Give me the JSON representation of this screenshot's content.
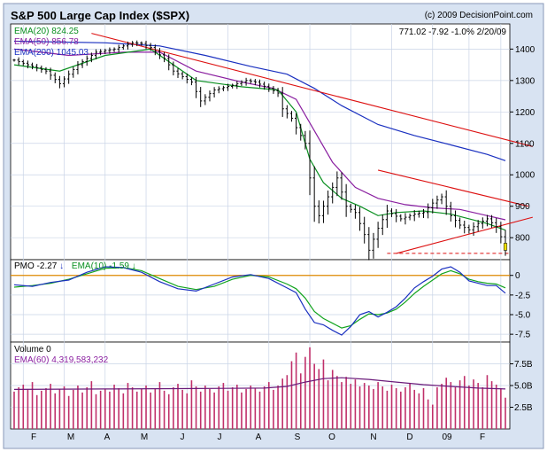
{
  "header": {
    "title": "S&P 500 Large Cap Index ($SPX)",
    "copyright": "(c) 2009 DecisionPoint.com",
    "quote": "771.02  -7.92  -1.0%  2/20/09"
  },
  "price_legend": [
    {
      "label": "EMA(20) 824.25",
      "color": "#0a8f20"
    },
    {
      "label": "EMA(50) 856.78",
      "color": "#8a1fa0"
    },
    {
      "label": "EMA(200) 1045.03",
      "color": "#1a30c0"
    }
  ],
  "pmo_legend": {
    "pmo": "PMO -2.27",
    "ema": "EMA(10) -1.59",
    "down_arrow": "↓",
    "up_arrow": "↑"
  },
  "volume_legend": {
    "volume": "Volume 0",
    "ema": "EMA(60) 4,319,583,232"
  },
  "price_ticks": [
    "1400",
    "1300",
    "1200",
    "1100",
    "1000",
    "900",
    "800"
  ],
  "pmo_ticks": [
    "0",
    "-2.5",
    "-5.0",
    "-7.5"
  ],
  "volume_ticks": [
    "7.5B",
    "5.0B",
    "2.5B"
  ],
  "x_ticks": [
    "F",
    "M",
    "A",
    "M",
    "J",
    "J",
    "A",
    "S",
    "O",
    "N",
    "D",
    "09",
    "F"
  ],
  "colors": {
    "candle": "#000000",
    "trend": "#dd1111",
    "volume": "#c0306a",
    "pmo": "#1a30c0",
    "pmo_signal": "#12a41e",
    "zero": "#e08a00",
    "frame_bg": "#d8e3f2",
    "grid": "#c9d4e6"
  },
  "chart_data": [
    {
      "type": "candlestick",
      "title": "S&P 500 Large Cap Index ($SPX)",
      "y_range": [
        730,
        1480
      ],
      "x": [
        "F",
        "M",
        "A",
        "M",
        "J",
        "J",
        "A",
        "S",
        "O",
        "N",
        "D",
        "09",
        "F"
      ],
      "close_points": [
        [
          0,
          1365
        ],
        [
          3,
          1350
        ],
        [
          7,
          1330
        ],
        [
          10,
          1290
        ],
        [
          14,
          1350
        ],
        [
          18,
          1390
        ],
        [
          22,
          1400
        ],
        [
          26,
          1420
        ],
        [
          28,
          1418
        ],
        [
          30,
          1405
        ],
        [
          33,
          1370
        ],
        [
          35,
          1330
        ],
        [
          39,
          1295
        ],
        [
          41,
          1235
        ],
        [
          44,
          1270
        ],
        [
          48,
          1285
        ],
        [
          51,
          1300
        ],
        [
          53,
          1295
        ],
        [
          56,
          1275
        ],
        [
          58,
          1260
        ],
        [
          59,
          1210
        ],
        [
          61,
          1180
        ],
        [
          62,
          1150
        ],
        [
          64,
          1100
        ],
        [
          65,
          990
        ],
        [
          66,
          900
        ],
        [
          67,
          870
        ],
        [
          69,
          930
        ],
        [
          71,
          990
        ],
        [
          73,
          900
        ],
        [
          75,
          880
        ],
        [
          77,
          810
        ],
        [
          78,
          760
        ],
        [
          80,
          830
        ],
        [
          82,
          885
        ],
        [
          85,
          860
        ],
        [
          88,
          875
        ],
        [
          90,
          880
        ],
        [
          92,
          910
        ],
        [
          94,
          930
        ],
        [
          96,
          870
        ],
        [
          98,
          840
        ],
        [
          100,
          825
        ],
        [
          102,
          845
        ],
        [
          104,
          860
        ],
        [
          106,
          835
        ],
        [
          108,
          771
        ]
      ],
      "ema20": [
        [
          0,
          1350
        ],
        [
          10,
          1330
        ],
        [
          20,
          1380
        ],
        [
          30,
          1400
        ],
        [
          40,
          1300
        ],
        [
          50,
          1280
        ],
        [
          58,
          1270
        ],
        [
          62,
          1200
        ],
        [
          65,
          1050
        ],
        [
          68,
          975
        ],
        [
          72,
          925
        ],
        [
          76,
          900
        ],
        [
          80,
          870
        ],
        [
          84,
          880
        ],
        [
          90,
          885
        ],
        [
          96,
          875
        ],
        [
          104,
          845
        ],
        [
          108,
          824
        ]
      ],
      "ema50": [
        [
          0,
          1400
        ],
        [
          12,
          1380
        ],
        [
          24,
          1390
        ],
        [
          32,
          1390
        ],
        [
          40,
          1330
        ],
        [
          50,
          1295
        ],
        [
          57,
          1275
        ],
        [
          62,
          1240
        ],
        [
          66,
          1140
        ],
        [
          70,
          1040
        ],
        [
          75,
          960
        ],
        [
          80,
          925
        ],
        [
          86,
          905
        ],
        [
          92,
          895
        ],
        [
          98,
          890
        ],
        [
          104,
          870
        ],
        [
          108,
          857
        ]
      ],
      "ema200": [
        [
          0,
          1425
        ],
        [
          20,
          1420
        ],
        [
          32,
          1410
        ],
        [
          42,
          1380
        ],
        [
          52,
          1345
        ],
        [
          60,
          1320
        ],
        [
          66,
          1275
        ],
        [
          72,
          1220
        ],
        [
          80,
          1160
        ],
        [
          88,
          1125
        ],
        [
          96,
          1095
        ],
        [
          104,
          1065
        ],
        [
          108,
          1045
        ]
      ],
      "trend_lines": [
        [
          [
            17,
            1450
          ],
          [
            114,
            1090
          ]
        ],
        [
          [
            80,
            1015
          ],
          [
            113,
            900
          ]
        ],
        [
          [
            84,
            750
          ],
          [
            114,
            865
          ]
        ]
      ],
      "support_level": 750
    },
    {
      "type": "line",
      "title": "PMO",
      "y_range": [
        -8.5,
        2.0
      ],
      "series": [
        {
          "name": "PMO",
          "values": [
            [
              0,
              -1.2
            ],
            [
              4,
              -1.4
            ],
            [
              8,
              -0.9
            ],
            [
              12,
              -0.6
            ],
            [
              16,
              0.4
            ],
            [
              20,
              1.1
            ],
            [
              24,
              1.0
            ],
            [
              28,
              0.4
            ],
            [
              32,
              -0.8
            ],
            [
              36,
              -1.7
            ],
            [
              40,
              -2.0
            ],
            [
              44,
              -1.1
            ],
            [
              48,
              -0.2
            ],
            [
              52,
              0.1
            ],
            [
              56,
              -0.4
            ],
            [
              60,
              -1.6
            ],
            [
              62,
              -2.2
            ],
            [
              64,
              -4.3
            ],
            [
              66,
              -6.0
            ],
            [
              68,
              -6.3
            ],
            [
              70,
              -7.0
            ],
            [
              72,
              -7.6
            ],
            [
              74,
              -6.5
            ],
            [
              76,
              -5.0
            ],
            [
              78,
              -4.6
            ],
            [
              80,
              -5.3
            ],
            [
              82,
              -4.7
            ],
            [
              84,
              -4.0
            ],
            [
              86,
              -2.9
            ],
            [
              88,
              -1.6
            ],
            [
              90,
              -0.8
            ],
            [
              92,
              -0.1
            ],
            [
              94,
              0.8
            ],
            [
              96,
              1.1
            ],
            [
              98,
              0.4
            ],
            [
              100,
              -0.7
            ],
            [
              102,
              -1.0
            ],
            [
              104,
              -1.3
            ],
            [
              106,
              -1.3
            ],
            [
              108,
              -2.27
            ]
          ]
        },
        {
          "name": "EMA(10)",
          "values": [
            [
              0,
              -1.5
            ],
            [
              4,
              -1.3
            ],
            [
              8,
              -1.0
            ],
            [
              12,
              -0.5
            ],
            [
              16,
              0.2
            ],
            [
              20,
              0.9
            ],
            [
              24,
              1.0
            ],
            [
              28,
              0.6
            ],
            [
              32,
              -0.4
            ],
            [
              36,
              -1.4
            ],
            [
              40,
              -1.8
            ],
            [
              44,
              -1.4
            ],
            [
              48,
              -0.5
            ],
            [
              52,
              0.0
            ],
            [
              56,
              -0.2
            ],
            [
              60,
              -1.1
            ],
            [
              62,
              -1.7
            ],
            [
              64,
              -2.9
            ],
            [
              66,
              -4.6
            ],
            [
              68,
              -5.5
            ],
            [
              70,
              -6.1
            ],
            [
              72,
              -6.7
            ],
            [
              74,
              -6.4
            ],
            [
              76,
              -5.6
            ],
            [
              78,
              -4.9
            ],
            [
              80,
              -5.0
            ],
            [
              82,
              -4.8
            ],
            [
              84,
              -4.3
            ],
            [
              86,
              -3.4
            ],
            [
              88,
              -2.3
            ],
            [
              90,
              -1.4
            ],
            [
              92,
              -0.6
            ],
            [
              94,
              0.2
            ],
            [
              96,
              0.6
            ],
            [
              98,
              0.2
            ],
            [
              100,
              -0.5
            ],
            [
              102,
              -0.8
            ],
            [
              104,
              -1.0
            ],
            [
              106,
              -1.1
            ],
            [
              108,
              -1.59
            ]
          ]
        }
      ]
    },
    {
      "type": "bar",
      "title": "Volume",
      "y_range": [
        0,
        10
      ],
      "values": [
        4.3,
        4.8,
        5.1,
        4.6,
        5.4,
        3.9,
        4.4,
        4.7,
        5.2,
        4.1,
        4.6,
        4.9,
        3.8,
        4.5,
        5.0,
        4.2,
        4.8,
        5.5,
        4.0,
        4.4,
        4.6,
        4.3,
        5.1,
        4.7,
        4.1,
        5.3,
        4.8,
        4.3,
        4.6,
        5.0,
        4.2,
        4.7,
        5.4,
        4.4,
        4.0,
        4.8,
        5.2,
        4.5,
        4.1,
        5.6,
        4.9,
        4.3,
        5.0,
        4.6,
        4.2,
        4.9,
        5.3,
        4.4,
        4.8,
        5.1,
        4.2,
        4.6,
        5.0,
        4.7,
        4.3,
        4.9,
        5.4,
        4.5,
        5.0,
        5.8,
        6.2,
        7.8,
        8.8,
        6.4,
        8.3,
        9.4,
        7.5,
        6.9,
        8.0,
        5.6,
        6.8,
        6.1,
        5.4,
        6.0,
        5.2,
        5.7,
        4.9,
        5.3,
        5.0,
        4.6,
        5.4,
        4.9,
        4.4,
        5.1,
        4.7,
        4.3,
        4.8,
        5.3,
        4.5,
        4.1,
        4.7,
        3.4,
        2.8,
        4.8,
        5.2,
        5.9,
        5.4,
        4.8,
        5.6,
        6.1,
        5.0,
        5.7,
        5.3,
        4.8,
        6.2,
        5.5,
        5.1,
        4.7,
        3.6
      ],
      "ema60": [
        [
          0,
          4.55
        ],
        [
          20,
          4.6
        ],
        [
          40,
          4.65
        ],
        [
          55,
          4.7
        ],
        [
          60,
          4.9
        ],
        [
          64,
          5.4
        ],
        [
          68,
          5.8
        ],
        [
          72,
          5.9
        ],
        [
          78,
          5.7
        ],
        [
          84,
          5.4
        ],
        [
          90,
          5.1
        ],
        [
          96,
          4.9
        ],
        [
          102,
          4.7
        ],
        [
          108,
          4.6
        ]
      ]
    }
  ]
}
